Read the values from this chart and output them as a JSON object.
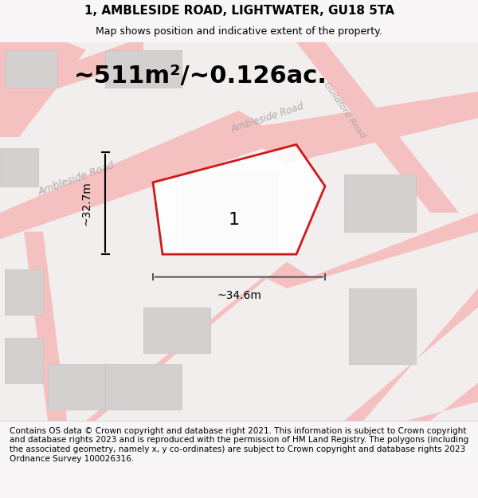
{
  "title": "1, AMBLESIDE ROAD, LIGHTWATER, GU18 5TA",
  "subtitle": "Map shows position and indicative extent of the property.",
  "area_text": "~511m²/~0.126ac.",
  "dim_width": "~34.6m",
  "dim_height": "~32.7m",
  "plot_label": "1",
  "footer": "Contains OS data © Crown copyright and database right 2021. This information is subject to Crown copyright and database rights 2023 and is reproduced with the permission of HM Land Registry. The polygons (including the associated geometry, namely x, y co-ordinates) are subject to Crown copyright and database rights 2023 Ordnance Survey 100026316.",
  "bg_color": "#f7f4f4",
  "map_bg": "#f0eaea",
  "road_color": "#f5c0c0",
  "building_color": "#d4d0d0",
  "plot_outline_color": "#cc0000",
  "plot_fill_color": "#ffffff",
  "title_fontsize": 11,
  "subtitle_fontsize": 9,
  "area_fontsize": 22,
  "dim_fontsize": 10,
  "footer_fontsize": 7.5
}
